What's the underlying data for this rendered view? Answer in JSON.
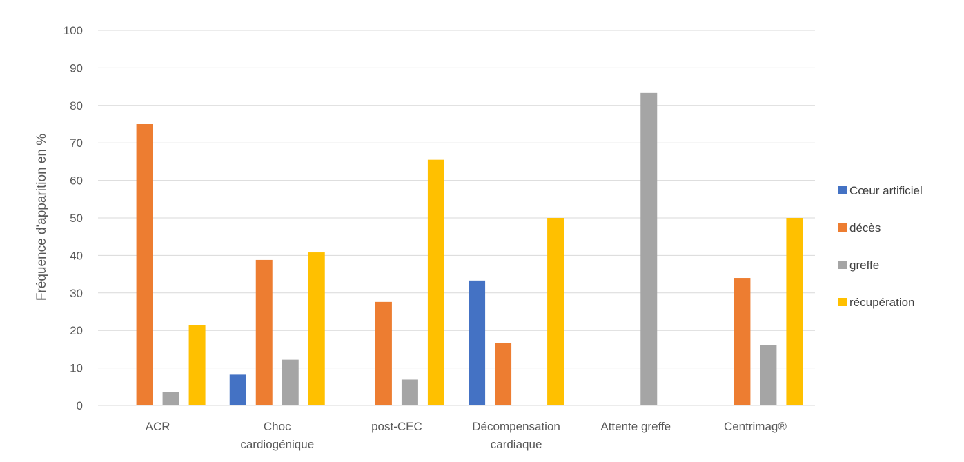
{
  "chart_data": {
    "type": "bar",
    "title": "",
    "xlabel": "",
    "ylabel": "Fréquence d'apparition en %",
    "ylim": [
      0,
      100
    ],
    "yticks": [
      0,
      10,
      20,
      30,
      40,
      50,
      60,
      70,
      80,
      90,
      100
    ],
    "grid": true,
    "legend_position": "right",
    "categories": [
      [
        "ACR"
      ],
      [
        "Choc",
        "cardiogénique"
      ],
      [
        "post-CEC"
      ],
      [
        "Décompensation",
        "cardiaque"
      ],
      [
        "Attente greffe"
      ],
      [
        "Centrimag®"
      ]
    ],
    "series": [
      {
        "name": "Cœur artificiel",
        "color": "#4472c4",
        "values": [
          0,
          8.2,
          0,
          33.3,
          0,
          0
        ]
      },
      {
        "name": "décès",
        "color": "#ed7d31",
        "values": [
          75,
          38.8,
          27.6,
          16.7,
          0,
          34
        ]
      },
      {
        "name": "greffe",
        "color": "#a5a5a5",
        "values": [
          3.6,
          12.2,
          6.9,
          0,
          83.3,
          16
        ]
      },
      {
        "name": "récupération",
        "color": "#ffc000",
        "values": [
          21.4,
          40.8,
          65.5,
          50,
          0,
          50
        ]
      }
    ]
  }
}
